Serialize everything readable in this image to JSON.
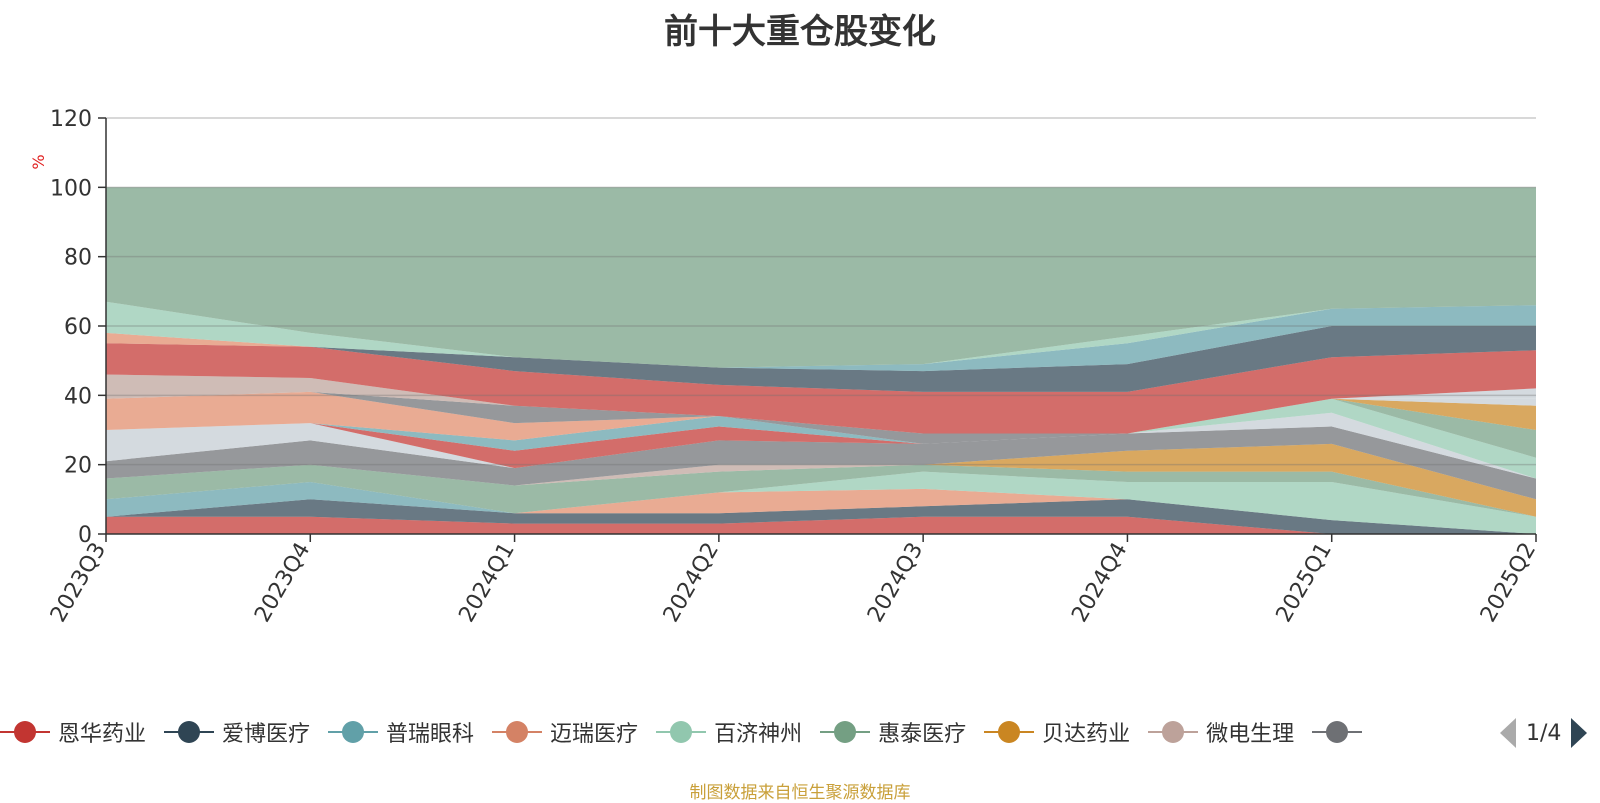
{
  "chart_data": {
    "type": "area",
    "title": "前十大重仓股变化",
    "ylabel": "%",
    "ylim": [
      0,
      120
    ],
    "yticks": [
      0,
      20,
      40,
      60,
      80,
      100,
      120
    ],
    "categories": [
      "2023Q3",
      "2023Q4",
      "2024Q1",
      "2024Q2",
      "2024Q3",
      "2024Q4",
      "2025Q1",
      "2025Q2"
    ],
    "grid": true,
    "legend_position": "bottom",
    "bands": [
      {
        "color": "#c23531",
        "lower": [
          0,
          0,
          0,
          0,
          0,
          0,
          0,
          0
        ],
        "upper": [
          5,
          5,
          3,
          3,
          5,
          5,
          0,
          0
        ]
      },
      {
        "color": "#2f4554",
        "lower": [
          5,
          5,
          3,
          3,
          5,
          5,
          0,
          0
        ],
        "upper": [
          5,
          10,
          6,
          6,
          8,
          10,
          4,
          0
        ]
      },
      {
        "color": "#e08a6a",
        "lower": [
          5,
          10,
          6,
          6,
          8,
          10,
          4,
          0
        ],
        "upper": [
          5,
          10,
          6,
          12,
          13,
          10,
          4,
          0
        ]
      },
      {
        "color": "#91c7ae",
        "lower": [
          5,
          10,
          6,
          12,
          13,
          10,
          4,
          0
        ],
        "upper": [
          5,
          10,
          6,
          12,
          18,
          15,
          15,
          5
        ]
      },
      {
        "color": "#61a0a8",
        "lower": [
          5,
          10,
          6,
          12,
          18,
          15,
          15,
          5
        ],
        "upper": [
          10,
          15,
          6,
          12,
          18,
          15,
          15,
          5
        ]
      },
      {
        "color": "#749f83",
        "lower": [
          10,
          15,
          6,
          12,
          18,
          15,
          15,
          5
        ],
        "upper": [
          16,
          20,
          14,
          18,
          20,
          18,
          18,
          5
        ]
      },
      {
        "color": "#ca8622",
        "lower": [
          16,
          20,
          14,
          18,
          20,
          18,
          18,
          5
        ],
        "upper": [
          16,
          20,
          14,
          18,
          20,
          24,
          26,
          10
        ]
      },
      {
        "color": "#bda29a",
        "lower": [
          16,
          20,
          14,
          18,
          20,
          24,
          26,
          10
        ],
        "upper": [
          16,
          20,
          14,
          20,
          20,
          24,
          26,
          10
        ]
      },
      {
        "color": "#6e7074",
        "lower": [
          16,
          20,
          14,
          20,
          20,
          24,
          26,
          10
        ],
        "upper": [
          21,
          27,
          19,
          27,
          26,
          29,
          31,
          16
        ]
      },
      {
        "color": "#c4ccd3",
        "lower": [
          21,
          27,
          19,
          27,
          26,
          29,
          31,
          16
        ],
        "upper": [
          30,
          32,
          19,
          27,
          26,
          29,
          35,
          16
        ]
      },
      {
        "color": "#91c7ae",
        "lower": [
          30,
          32,
          19,
          27,
          26,
          29,
          35,
          16
        ],
        "upper": [
          30,
          32,
          19,
          27,
          26,
          29,
          39,
          22
        ]
      },
      {
        "color": "#749f83",
        "lower": [
          30,
          32,
          19,
          27,
          26,
          29,
          39,
          22
        ],
        "upper": [
          30,
          32,
          19,
          27,
          26,
          29,
          39,
          30
        ]
      },
      {
        "color": "#c23531",
        "lower": [
          30,
          32,
          19,
          27,
          26,
          29,
          39,
          30
        ],
        "upper": [
          30,
          32,
          24,
          31,
          26,
          29,
          39,
          30
        ]
      },
      {
        "color": "#61a0a8",
        "lower": [
          30,
          32,
          24,
          31,
          26,
          29,
          39,
          30
        ],
        "upper": [
          30,
          32,
          27,
          34,
          26,
          29,
          39,
          30
        ]
      },
      {
        "color": "#e08a6a",
        "lower": [
          30,
          32,
          27,
          34,
          26,
          29,
          39,
          30
        ],
        "upper": [
          39,
          41,
          32,
          34,
          26,
          29,
          39,
          30
        ]
      },
      {
        "color": "#6e7074",
        "lower": [
          39,
          41,
          32,
          34,
          26,
          29,
          39,
          30
        ],
        "upper": [
          39,
          41,
          37,
          34,
          29,
          29,
          39,
          30
        ]
      },
      {
        "color": "#ca8622",
        "lower": [
          39,
          41,
          37,
          34,
          29,
          29,
          39,
          30
        ],
        "upper": [
          39,
          41,
          37,
          34,
          29,
          29,
          39,
          37
        ]
      },
      {
        "color": "#c4ccd3",
        "lower": [
          39,
          41,
          37,
          34,
          29,
          29,
          39,
          37
        ],
        "upper": [
          39,
          41,
          37,
          34,
          29,
          29,
          39,
          39
        ]
      },
      {
        "color": "#bda29a",
        "lower": [
          39,
          41,
          37,
          34,
          29,
          29,
          39,
          39
        ],
        "upper": [
          46,
          45,
          37,
          34,
          29,
          29,
          39,
          39
        ]
      },
      {
        "color": "#c4ccd3",
        "lower": [
          46,
          45,
          37,
          34,
          29,
          29,
          39,
          39
        ],
        "upper": [
          46,
          45,
          37,
          34,
          29,
          29,
          39,
          42
        ]
      },
      {
        "color": "#c23531",
        "lower": [
          46,
          45,
          37,
          34,
          29,
          29,
          39,
          42
        ],
        "upper": [
          55,
          54,
          47,
          43,
          41,
          41,
          51,
          53
        ]
      },
      {
        "color": "#2f4554",
        "lower": [
          55,
          54,
          47,
          43,
          41,
          41,
          51,
          53
        ],
        "upper": [
          55,
          54,
          51,
          48,
          47,
          49,
          60,
          60
        ]
      },
      {
        "color": "#61a0a8",
        "lower": [
          55,
          54,
          51,
          48,
          47,
          49,
          60,
          60
        ],
        "upper": [
          55,
          54,
          51,
          48,
          49,
          55,
          65,
          66
        ]
      },
      {
        "color": "#e08a6a",
        "lower": [
          55,
          54,
          51,
          48,
          49,
          55,
          65,
          66
        ],
        "upper": [
          58,
          54,
          51,
          48,
          49,
          55,
          65,
          66
        ]
      },
      {
        "color": "#91c7ae",
        "lower": [
          58,
          54,
          51,
          48,
          49,
          55,
          65,
          66
        ],
        "upper": [
          67,
          58,
          51,
          48,
          49,
          57,
          65,
          66
        ]
      },
      {
        "color": "#749f83",
        "lower": [
          67,
          58,
          51,
          48,
          49,
          57,
          65,
          66
        ],
        "upper": [
          100,
          100,
          100,
          100,
          100,
          100,
          100,
          100
        ]
      }
    ]
  },
  "legend": {
    "items": [
      {
        "label": "恩华药业",
        "color": "#c23531",
        "icon": "circle-marker"
      },
      {
        "label": "爱博医疗",
        "color": "#2f4554",
        "icon": "circle-marker"
      },
      {
        "label": "普瑞眼科",
        "color": "#61a0a8",
        "icon": "circle-marker"
      },
      {
        "label": "迈瑞医疗",
        "color": "#d48265",
        "icon": "circle-marker"
      },
      {
        "label": "百济神州",
        "color": "#91c7ae",
        "icon": "circle-marker"
      },
      {
        "label": "惠泰医疗",
        "color": "#749f83",
        "icon": "circle-marker"
      },
      {
        "label": "贝达药业",
        "color": "#ca8622",
        "icon": "circle-marker"
      },
      {
        "label": "微电生理",
        "color": "#bda29a",
        "icon": "circle-marker"
      },
      {
        "label": "",
        "color": "#6e7074",
        "icon": "circle-marker"
      }
    ],
    "page_text": "1/4",
    "prev_icon": "triangle-left-icon",
    "next_icon": "triangle-right-icon"
  },
  "footer": {
    "source": "制图数据来自恒生聚源数据库"
  }
}
